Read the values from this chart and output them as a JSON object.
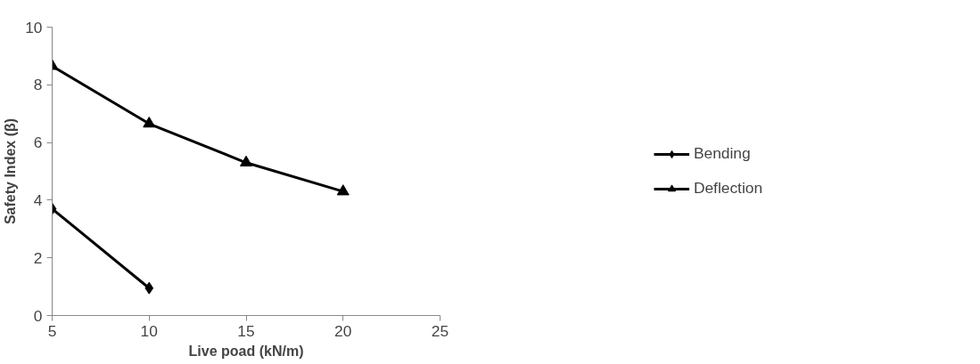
{
  "chart_data": {
    "type": "line",
    "xlabel": "Live poad (kN/m)",
    "ylabel": "Safety Index (β)",
    "xlim": [
      5,
      25
    ],
    "xticks": [
      5,
      10,
      15,
      20,
      25
    ],
    "ylim": [
      0,
      10
    ],
    "yticks": [
      0,
      2,
      4,
      6,
      8,
      10
    ],
    "grid": false,
    "legend": "right",
    "line_style": "solid",
    "series": [
      {
        "name": "Bending",
        "color": "#000000",
        "marker": "diamond",
        "x": [
          5,
          10
        ],
        "values": [
          3.7,
          0.95
        ]
      },
      {
        "name": "Deflection",
        "color": "#000000",
        "marker": "triangle",
        "x": [
          5,
          10,
          15,
          20
        ],
        "values": [
          8.65,
          6.65,
          5.3,
          4.3
        ]
      }
    ]
  }
}
